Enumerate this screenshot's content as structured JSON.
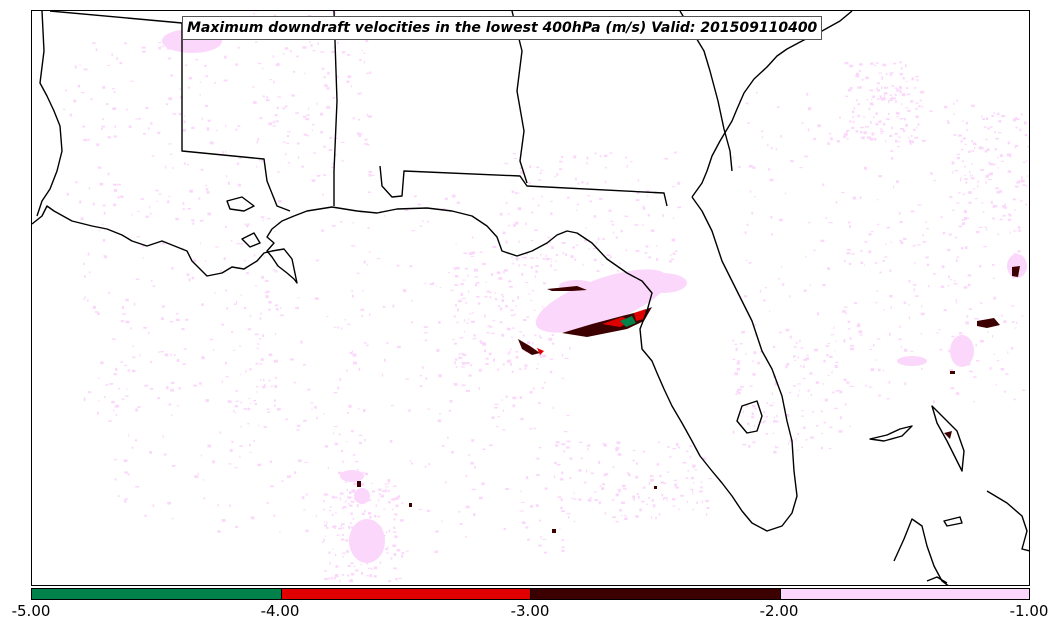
{
  "title": "Maximum downdraft velocities in the lowest 400hPa (m/s) Valid: 201509110400",
  "colorbar": {
    "segments": [
      {
        "range": [
          -5.0,
          -4.0
        ],
        "color": "#00824a"
      },
      {
        "range": [
          -4.0,
          -3.0
        ],
        "color": "#e00000"
      },
      {
        "range": [
          -3.0,
          -2.0
        ],
        "color": "#3d0000"
      },
      {
        "range": [
          -2.0,
          -1.0
        ],
        "color": "#fbd7fb"
      }
    ],
    "ticks": [
      "-5.00",
      "-4.00",
      "-3.00",
      "-2.00",
      "-1.00"
    ]
  },
  "map": {
    "region": "Gulf of Mexico / Southeastern United States",
    "boundary_color": "#000000"
  }
}
